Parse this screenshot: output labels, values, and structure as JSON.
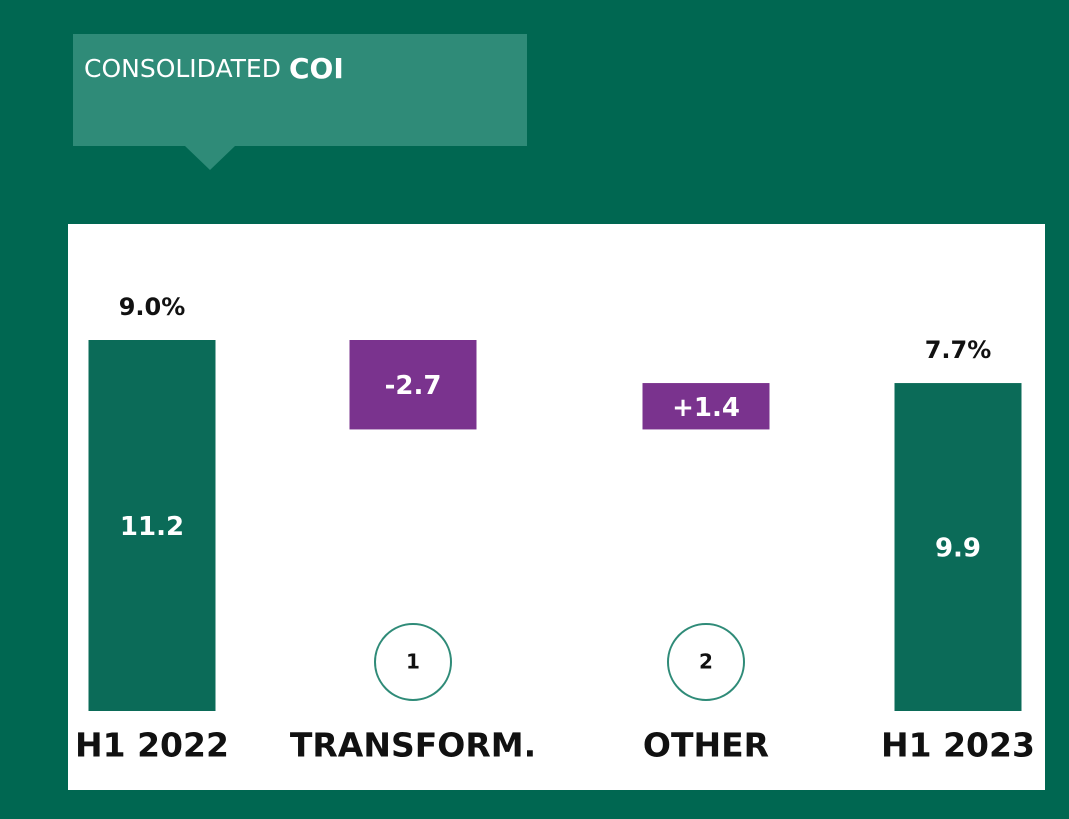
{
  "chart_data": {
    "type": "waterfall",
    "title": "CONSOLIDATED",
    "title_emphasis": "COI",
    "categories": [
      "H1 2022",
      "TRANSFORM.",
      "OTHER",
      "H1 2023"
    ],
    "values": [
      11.2,
      -2.7,
      1.4,
      9.9
    ],
    "value_labels": [
      "11.2",
      "-2.7",
      "+1.4",
      "9.9"
    ],
    "totals": [
      true,
      false,
      false,
      true
    ],
    "rate_labels": [
      "9.0%",
      null,
      null,
      "7.7%"
    ],
    "badges": [
      null,
      "1",
      "2",
      null
    ],
    "color": "#0b6b58",
    "change_color": "#7a338e"
  }
}
